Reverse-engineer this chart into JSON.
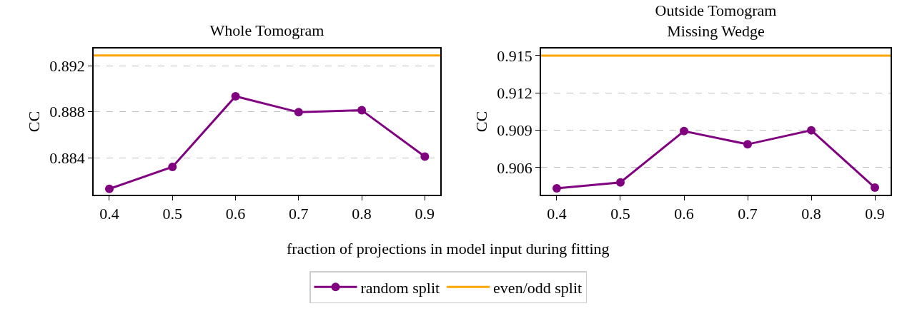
{
  "chart_data": [
    {
      "type": "line",
      "title": "Whole Tomogram",
      "ylabel": "CC",
      "xlabel": "fraction of projections in model input during fitting",
      "x": [
        0.4,
        0.5,
        0.6,
        0.7,
        0.8,
        0.9
      ],
      "series": [
        {
          "name": "random split",
          "color": "#800080",
          "marker": "circle",
          "values": [
            0.88129,
            0.8832,
            0.88934,
            0.88795,
            0.88812,
            0.8841
          ]
        },
        {
          "name": "even/odd split",
          "color": "#ffa500",
          "marker": "none",
          "x": [
            0.3751,
            0.9245
          ],
          "values": [
            0.89289,
            0.89289
          ]
        }
      ],
      "xlim": [
        0.3751,
        0.9245
      ],
      "xticks": [
        0.4,
        0.5,
        0.6,
        0.7,
        0.8,
        0.9
      ],
      "ylim": [
        0.88078,
        0.89349
      ],
      "yticks": [
        0.884,
        0.888,
        0.892
      ],
      "grid": "y",
      "legend": "bottom",
      "line_style": "solid"
    },
    {
      "type": "line",
      "title": "Outside Tomogram\nMissing Wedge",
      "ylabel": "CC",
      "x": [
        0.4,
        0.5,
        0.6,
        0.7,
        0.8,
        0.9
      ],
      "series": [
        {
          "color": "#800080",
          "marker": "circle",
          "values": [
            0.90434,
            0.90481,
            0.90893,
            0.90787,
            0.909,
            0.90439
          ]
        },
        {
          "color": "#ffa500",
          "marker": "none",
          "x": [
            0.3753,
            0.9247
          ],
          "values": [
            0.915,
            0.915
          ]
        }
      ],
      "xlim": [
        0.3753,
        0.9247
      ],
      "xticks": [
        0.4,
        0.5,
        0.6,
        0.7,
        0.8,
        0.9
      ],
      "ylim": [
        0.90382,
        0.91557
      ],
      "yticks": [
        0.906,
        0.909,
        0.912,
        0.915
      ],
      "grid": "y",
      "legend": false,
      "line_style": "solid"
    }
  ]
}
